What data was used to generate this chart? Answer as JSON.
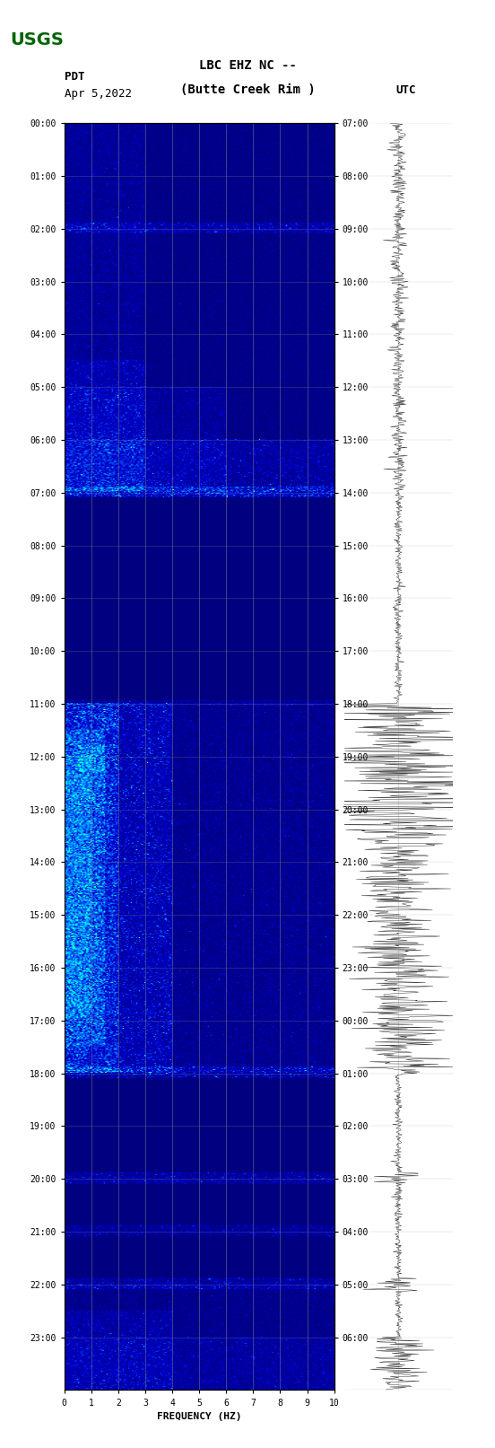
{
  "title_line1": "LBC EHZ NC --",
  "title_line2": "(Butte Creek Rim )",
  "date_label": "Apr 5,2022",
  "left_label": "PDT",
  "right_label": "UTC",
  "xlabel": "FREQUENCY (HZ)",
  "freq_min": 0,
  "freq_max": 10,
  "time_hours": 24,
  "pdt_ticks": [
    "00:00",
    "01:00",
    "02:00",
    "03:00",
    "04:00",
    "05:00",
    "06:00",
    "07:00",
    "08:00",
    "09:00",
    "10:00",
    "11:00",
    "12:00",
    "13:00",
    "14:00",
    "15:00",
    "16:00",
    "17:00",
    "18:00",
    "19:00",
    "20:00",
    "21:00",
    "22:00",
    "23:00"
  ],
  "utc_ticks": [
    "07:00",
    "08:00",
    "09:00",
    "10:00",
    "11:00",
    "12:00",
    "13:00",
    "14:00",
    "15:00",
    "16:00",
    "17:00",
    "18:00",
    "19:00",
    "20:00",
    "21:00",
    "22:00",
    "23:00",
    "00:00",
    "01:00",
    "02:00",
    "03:00",
    "04:00",
    "05:00",
    "06:00"
  ],
  "bg_color": "#ffffff",
  "spectrogram_bg": "#000080",
  "grid_color": "#808080",
  "text_color": "#000000",
  "title_color": "#000000",
  "waveform_color": "#000000",
  "figsize": [
    5.52,
    16.13
  ],
  "dpi": 100
}
